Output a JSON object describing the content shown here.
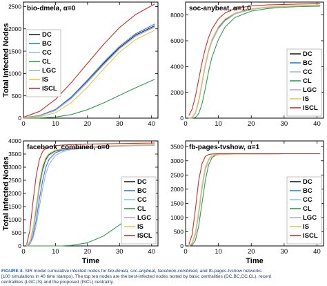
{
  "colors": {
    "DC": "#222222",
    "BC": "#2c7ed6",
    "CC": "#87c5f0",
    "CL": "#2a9e48",
    "LGC": "#b4a8de",
    "IS": "#e6c84a",
    "ISCL": "#d42a2a"
  },
  "caption": {
    "label": "FIGURE 4.",
    "text_1": " SIR model cumulative infected nodes for ",
    "nets": "bio-dmela, soc-anybeat, facebook-combined,",
    "text_2": " and ",
    "net_last": "fb-pages-tvshow",
    "text_3": " networks",
    "line2": "[100 simulations in 40 time stamps). The top ten nodes are the best-infected nodes tested by basic centralities (DC,BC,CC,CL), recent",
    "line3": "centralities (LGC,IS) and the proposed (ISCL) centrality."
  },
  "chart_data": [
    {
      "type": "line",
      "title": "bio-dmela, α=0",
      "xlabel": "",
      "ylabel": "Total Infected Nodes",
      "xlim": [
        0,
        42
      ],
      "ylim": [
        0,
        2600
      ],
      "xticks": [
        0,
        10,
        20,
        30,
        40
      ],
      "yticks": [
        0,
        500,
        1000,
        1500,
        2000,
        2500
      ],
      "legend": "left",
      "x": [
        0,
        5,
        10,
        15,
        20,
        25,
        30,
        35,
        41
      ],
      "series": [
        {
          "name": "DC",
          "values": [
            10,
            50,
            180,
            460,
            830,
            1220,
            1580,
            1860,
            2070
          ]
        },
        {
          "name": "BC",
          "values": [
            12,
            58,
            195,
            480,
            855,
            1250,
            1610,
            1890,
            2110
          ]
        },
        {
          "name": "CC",
          "values": [
            8,
            45,
            170,
            440,
            805,
            1190,
            1550,
            1830,
            2040
          ]
        },
        {
          "name": "CL",
          "values": [
            0,
            5,
            25,
            80,
            190,
            340,
            510,
            680,
            870
          ]
        },
        {
          "name": "LGC",
          "values": [
            9,
            48,
            175,
            450,
            815,
            1200,
            1560,
            1840,
            2050
          ]
        },
        {
          "name": "IS",
          "values": [
            5,
            30,
            120,
            350,
            700,
            1100,
            1480,
            1760,
            1970
          ]
        },
        {
          "name": "ISCL",
          "values": [
            20,
            150,
            420,
            800,
            1230,
            1650,
            2030,
            2320,
            2560
          ]
        }
      ]
    },
    {
      "type": "line",
      "title": "soc-anybeat, α=1.0",
      "xlabel": "",
      "ylabel": "",
      "xlim": [
        0,
        42
      ],
      "ylim": [
        0,
        9000
      ],
      "xticks": [
        0,
        10,
        20,
        30,
        40
      ],
      "yticks": [
        0,
        2000,
        4000,
        6000,
        8000
      ],
      "legend": "right",
      "x": [
        1,
        2,
        3,
        4,
        5,
        6,
        7,
        8,
        10,
        12,
        15,
        20,
        25,
        30,
        35,
        41
      ],
      "series": [
        {
          "name": "DC",
          "values": [
            0,
            60,
            400,
            1300,
            2700,
            4100,
            5200,
            6000,
            7000,
            7600,
            8100,
            8450,
            8600,
            8680,
            8720,
            8750
          ]
        },
        {
          "name": "BC",
          "values": [
            0,
            70,
            430,
            1350,
            2750,
            4150,
            5250,
            6050,
            7050,
            7650,
            8120,
            8460,
            8610,
            8690,
            8730,
            8760
          ]
        },
        {
          "name": "CC",
          "values": [
            0,
            50,
            380,
            1250,
            2650,
            4050,
            5150,
            5950,
            6950,
            7550,
            8080,
            8440,
            8590,
            8670,
            8710,
            8740
          ]
        },
        {
          "name": "CL",
          "values": [
            0,
            0,
            60,
            350,
            1100,
            2300,
            3600,
            4700,
            6100,
            7050,
            7800,
            8300,
            8500,
            8600,
            8650,
            8680
          ]
        },
        {
          "name": "LGC",
          "values": [
            0,
            50,
            370,
            1230,
            2620,
            4020,
            5120,
            5920,
            6930,
            7530,
            8070,
            8430,
            8580,
            8660,
            8700,
            8730
          ]
        },
        {
          "name": "IS",
          "values": [
            0,
            80,
            460,
            1400,
            2800,
            4200,
            5300,
            6100,
            7100,
            7680,
            8150,
            8480,
            8620,
            8700,
            8740,
            8770
          ]
        },
        {
          "name": "ISCL",
          "values": [
            200,
            700,
            1700,
            3000,
            4300,
            5400,
            6250,
            6900,
            7700,
            8150,
            8500,
            8700,
            8780,
            8820,
            8850,
            8870
          ]
        }
      ]
    },
    {
      "type": "line",
      "title": "facebook_combined, α=0",
      "xlabel": "Time",
      "ylabel": "Total Infected Nodes",
      "xlim": [
        0,
        42
      ],
      "ylim": [
        0,
        4000
      ],
      "xticks": [
        0,
        10,
        20,
        30,
        40
      ],
      "yticks": [
        0,
        500,
        1000,
        1500,
        2000,
        2500,
        3000,
        3500,
        4000
      ],
      "legend": "right",
      "x": [
        1,
        2,
        3,
        4,
        5,
        6,
        7,
        8,
        10,
        12,
        15,
        20,
        25,
        30,
        35,
        41
      ],
      "series": [
        {
          "name": "DC",
          "values": [
            0,
            150,
            600,
            1400,
            2300,
            2950,
            3300,
            3480,
            3620,
            3680,
            3720,
            3760,
            3790,
            3810,
            3830,
            3850
          ]
        },
        {
          "name": "BC",
          "values": [
            0,
            80,
            400,
            1000,
            1800,
            2500,
            3000,
            3300,
            3550,
            3640,
            3700,
            3750,
            3780,
            3800,
            3820,
            3840
          ]
        },
        {
          "name": "CC",
          "values": [
            0,
            120,
            550,
            1300,
            2200,
            2850,
            3250,
            3450,
            3600,
            3670,
            3715,
            3755,
            3785,
            3805,
            3825,
            3845
          ]
        },
        {
          "name": "CL",
          "values": [
            0,
            0,
            0,
            0,
            0,
            0,
            0,
            0,
            0,
            0,
            20,
            120,
            380,
            800,
            1250,
            1800
          ]
        },
        {
          "name": "LGC",
          "values": [
            0,
            60,
            300,
            800,
            1500,
            2200,
            2750,
            3100,
            3450,
            3580,
            3670,
            3730,
            3770,
            3795,
            3815,
            3835
          ]
        },
        {
          "name": "IS",
          "values": [
            0,
            180,
            700,
            1550,
            2450,
            3050,
            3380,
            3530,
            3650,
            3700,
            3740,
            3780,
            3810,
            3830,
            3850,
            3870
          ]
        },
        {
          "name": "ISCL",
          "values": [
            50,
            600,
            1700,
            2700,
            3300,
            3600,
            3720,
            3780,
            3820,
            3840,
            3860,
            3880,
            3890,
            3900,
            3910,
            3920
          ]
        }
      ]
    },
    {
      "type": "line",
      "title": "fb-pages-tvshow, α=1",
      "xlabel": "Time",
      "ylabel": "",
      "xlim": [
        0,
        42
      ],
      "ylim": [
        0,
        3700
      ],
      "xticks": [
        0,
        10,
        20,
        30,
        40
      ],
      "yticks": [
        0,
        500,
        1000,
        1500,
        2000,
        2500,
        3000,
        3500
      ],
      "legend": "right",
      "x": [
        1,
        2,
        3,
        4,
        5,
        6,
        7,
        8,
        9,
        10,
        12,
        15,
        20,
        25,
        30,
        35,
        41
      ],
      "series": [
        {
          "name": "DC",
          "values": [
            0,
            100,
            450,
            1200,
            2100,
            2750,
            3050,
            3170,
            3210,
            3225,
            3235,
            3240,
            3245,
            3248,
            3250,
            3250,
            3250
          ]
        },
        {
          "name": "BC",
          "values": [
            0,
            90,
            420,
            1150,
            2050,
            2700,
            3030,
            3160,
            3205,
            3222,
            3233,
            3240,
            3245,
            3248,
            3250,
            3250,
            3250
          ]
        },
        {
          "name": "CC",
          "values": [
            0,
            95,
            430,
            1170,
            2070,
            2720,
            3040,
            3165,
            3207,
            3224,
            3234,
            3240,
            3245,
            3248,
            3250,
            3250,
            3250
          ]
        },
        {
          "name": "CL",
          "values": [
            0,
            30,
            200,
            700,
            1500,
            2300,
            2850,
            3100,
            3190,
            3220,
            3235,
            3242,
            3246,
            3248,
            3250,
            3250,
            3250
          ]
        },
        {
          "name": "LGC",
          "values": [
            0,
            80,
            400,
            1100,
            2000,
            2680,
            3020,
            3155,
            3203,
            3221,
            3232,
            3240,
            3245,
            3248,
            3250,
            3250,
            3250
          ]
        },
        {
          "name": "IS",
          "values": [
            0,
            110,
            480,
            1250,
            2150,
            2780,
            3060,
            3175,
            3212,
            3226,
            3236,
            3241,
            3246,
            3248,
            3250,
            3250,
            3250
          ]
        },
        {
          "name": "ISCL",
          "values": [
            50,
            400,
            1300,
            2300,
            2900,
            3150,
            3220,
            3240,
            3245,
            3248,
            3250,
            3250,
            3250,
            3250,
            3250,
            3250,
            3250
          ]
        }
      ]
    }
  ]
}
